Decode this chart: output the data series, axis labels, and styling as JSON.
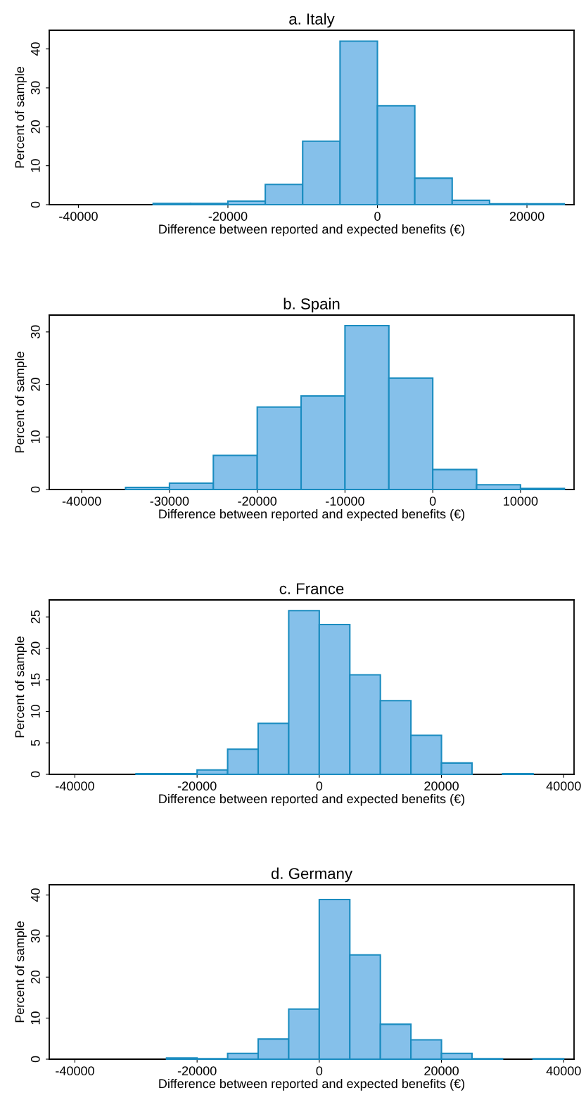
{
  "chart_data": [
    {
      "type": "histogram",
      "title": "a. Italy",
      "xlabel": "Difference between reported and expected benefits (€)",
      "ylabel": "Percent of sample",
      "color": "#85c0ea",
      "bins": [
        -30000,
        -25000,
        -20000,
        -15000,
        -10000,
        -5000,
        0,
        5000,
        10000,
        15000,
        20000,
        25000
      ],
      "values": [
        0.3,
        0.3,
        0.9,
        5.2,
        16.3,
        42,
        25.4,
        6.8,
        1.1,
        0.2,
        0.2
      ],
      "xlim": [
        -43900,
        26300
      ],
      "ylim": [
        0,
        44.8
      ],
      "xticks": [
        -40000,
        -20000,
        0,
        20000
      ],
      "yticks": [
        0,
        10,
        20,
        30,
        40
      ],
      "grid": false
    },
    {
      "type": "histogram",
      "title": "b. Spain",
      "xlabel": "Difference between reported and expected benefits (€)",
      "ylabel": "Percent of sample",
      "color": "#85c0ea",
      "bins": [
        -35000,
        -30000,
        -25000,
        -20000,
        -15000,
        -10000,
        -5000,
        0,
        5000,
        10000,
        15000
      ],
      "values": [
        0.4,
        1.2,
        6.5,
        15.7,
        17.8,
        31.2,
        21.2,
        3.8,
        0.9,
        0.2
      ],
      "xlim": [
        -43700,
        16100
      ],
      "ylim": [
        0,
        33.2
      ],
      "xticks": [
        -40000,
        -30000,
        -20000,
        -10000,
        0,
        10000
      ],
      "yticks": [
        0,
        10,
        20,
        30
      ],
      "grid": false
    },
    {
      "type": "histogram",
      "title": "c. France",
      "xlabel": "Difference between reported and expected benefits (€)",
      "ylabel": "Percent of sample",
      "color": "#85c0ea",
      "bins": [
        -30000,
        -25000,
        -20000,
        -15000,
        -10000,
        -5000,
        0,
        5000,
        10000,
        15000,
        20000,
        25000,
        30000,
        35000
      ],
      "values": [
        0.1,
        0.1,
        0.7,
        4.0,
        8.1,
        26.0,
        23.8,
        15.8,
        11.7,
        6.2,
        1.8,
        0,
        0.1
      ],
      "xlim": [
        -44200,
        41700
      ],
      "ylim": [
        0,
        27.7
      ],
      "xticks": [
        -40000,
        -20000,
        0,
        20000,
        40000
      ],
      "yticks": [
        0,
        5,
        10,
        15,
        20,
        25
      ],
      "grid": false
    },
    {
      "type": "histogram",
      "title": "d. Germany",
      "xlabel": "Difference between reported and expected benefits (€)",
      "ylabel": "Percent of sample",
      "color": "#85c0ea",
      "bins": [
        -25000,
        -20000,
        -15000,
        -10000,
        -5000,
        0,
        5000,
        10000,
        15000,
        20000,
        25000,
        30000,
        35000,
        40000
      ],
      "values": [
        0.3,
        0.1,
        1.4,
        4.9,
        12.2,
        38.9,
        25.4,
        8.5,
        4.7,
        1.4,
        0.1,
        0,
        0.1
      ],
      "xlim": [
        -44200,
        41700
      ],
      "ylim": [
        0,
        42.5
      ],
      "xticks": [
        -40000,
        -20000,
        0,
        20000,
        40000
      ],
      "yticks": [
        0,
        10,
        20,
        30,
        40
      ],
      "grid": false
    }
  ]
}
